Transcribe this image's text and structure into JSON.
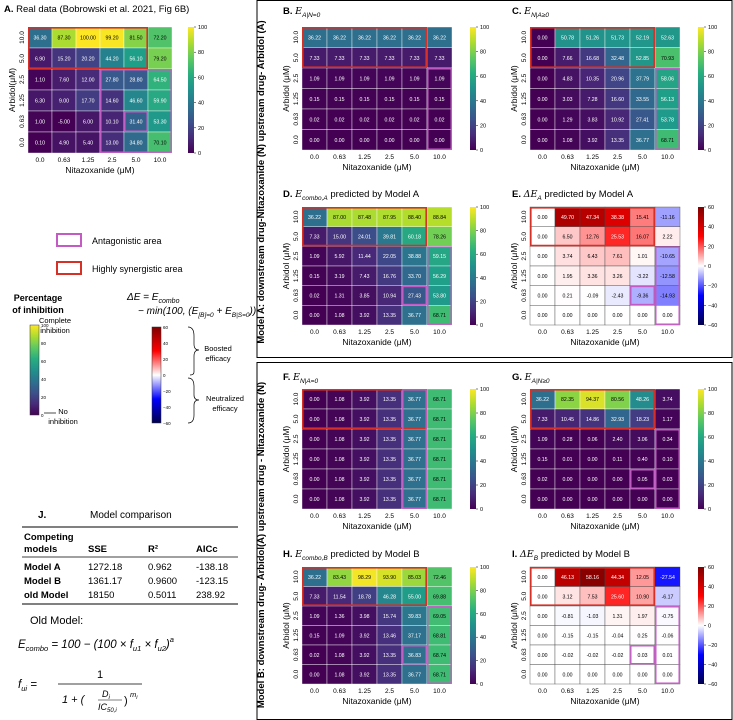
{
  "colors": {
    "synergy": "#d73027",
    "antagonism": "#c45ac4"
  },
  "chart_data": [
    {
      "id": "A",
      "type": "heatmap",
      "label": "A.",
      "title": "Real data (Bobrowski et al. 2021, Fig 6B)",
      "xlabel": "Nitazoxanide (μM)",
      "ylabel": "Arbidol(μM)",
      "xticks": [
        "0.0",
        "0.63",
        "1.25",
        "2.5",
        "5.0",
        "10.0"
      ],
      "yticks": [
        "10.0",
        "5.0",
        "2.5",
        "1.25",
        "0.63",
        "0.0"
      ],
      "cbar_ticks": [
        "0",
        "20",
        "40",
        "60",
        "80",
        "100"
      ],
      "vmin": 0,
      "vmax": 100,
      "cmap": "viridis",
      "values": [
        [
          "36.30",
          "87.30",
          "100.00",
          "99.20",
          "81.50",
          "72.20"
        ],
        [
          "6.90",
          "15.20",
          "20.20",
          "44.20",
          "56.10",
          "79.20"
        ],
        [
          "1.10",
          "7.60",
          "12.00",
          "27.80",
          "28.80",
          "64.50"
        ],
        [
          "6.30",
          "9.00",
          "17.70",
          "14.60",
          "46.60",
          "59.90"
        ],
        [
          "1.00",
          "-5.00",
          "6.00",
          "10.10",
          "31.40",
          "53.30"
        ],
        [
          "0.10",
          "4.90",
          "5.40",
          "13.00",
          "34.80",
          "70.10"
        ]
      ],
      "red_boxes": [
        [
          0,
          1,
          0,
          4
        ]
      ],
      "pink_boxes": [
        [
          2,
          5,
          3,
          5
        ],
        [
          4,
          4,
          4,
          4
        ]
      ]
    },
    {
      "id": "B",
      "type": "heatmap",
      "label": "B.",
      "title": "E",
      "title_sub": "A|N=0",
      "xlabel": "Nitazoxanide (μM)",
      "ylabel": "Arbidol (μM)",
      "xticks": [
        "0.0",
        "0.63",
        "1.25",
        "2.5",
        "5.0",
        "10.0"
      ],
      "yticks": [
        "10.0",
        "5.0",
        "2.5",
        "1.25",
        "0.63",
        "0.0"
      ],
      "cbar_ticks": [
        "0",
        "20",
        "40",
        "60",
        "80",
        "100"
      ],
      "vmin": 0,
      "vmax": 100,
      "cmap": "viridis",
      "values": [
        [
          "36.22",
          "36.22",
          "36.22",
          "36.22",
          "36.22",
          "36.22"
        ],
        [
          "7.33",
          "7.33",
          "7.33",
          "7.33",
          "7.33",
          "7.33"
        ],
        [
          "1.09",
          "1.09",
          "1.09",
          "1.09",
          "1.09",
          "1.09"
        ],
        [
          "0.15",
          "0.15",
          "0.15",
          "0.15",
          "0.15",
          "0.15"
        ],
        [
          "0.02",
          "0.02",
          "0.02",
          "0.02",
          "0.02",
          "0.02"
        ],
        [
          "0.00",
          "0.00",
          "0.00",
          "0.00",
          "0.00",
          "0.00"
        ]
      ],
      "red_boxes": [
        [
          0,
          1,
          0,
          4
        ]
      ],
      "pink_boxes": [
        [
          2,
          5,
          5,
          5
        ]
      ]
    },
    {
      "id": "C",
      "type": "heatmap",
      "label": "C.",
      "title": "E",
      "title_sub": "N|A≥0",
      "xlabel": "Nitazoxanide (μM)",
      "ylabel": "Arbidol (μM)",
      "xticks": [
        "0.0",
        "0.63",
        "1.25",
        "2.5",
        "5.0",
        "10.0"
      ],
      "yticks": [
        "10.0",
        "5.0",
        "2.5",
        "1.25",
        "0.63",
        "0.0"
      ],
      "cbar_ticks": [
        "0",
        "20",
        "40",
        "60",
        "80",
        "100"
      ],
      "vmin": 0,
      "vmax": 100,
      "cmap": "viridis",
      "values": [
        [
          "0.00",
          "50.78",
          "51.26",
          "51.73",
          "52.19",
          "52.63"
        ],
        [
          "0.00",
          "7.66",
          "16.68",
          "32.48",
          "52.85",
          "70.93"
        ],
        [
          "0.00",
          "4.83",
          "10.35",
          "20.96",
          "37.79",
          "58.06"
        ],
        [
          "0.00",
          "3.03",
          "7.28",
          "16.60",
          "33.55",
          "56.13"
        ],
        [
          "0.00",
          "1.29",
          "3.83",
          "10.92",
          "27.41",
          "53.78"
        ],
        [
          "0.00",
          "1.08",
          "3.92",
          "13.35",
          "36.77",
          "68.71"
        ]
      ],
      "red_boxes": [
        [
          0,
          1,
          0,
          4
        ]
      ],
      "pink_boxes": [
        [
          2,
          5,
          5,
          5
        ]
      ]
    },
    {
      "id": "D",
      "type": "heatmap",
      "label": "D.",
      "title": "E",
      "title_sub": "combo,A",
      "title_suffix": " predicted by Model A",
      "xlabel": "Nitazoxanide (μM)",
      "ylabel": "Arbidol (μM)",
      "xticks": [
        "0.0",
        "0.63",
        "1.25",
        "2.5",
        "5.0",
        "10.0"
      ],
      "yticks": [
        "10.0",
        "5.0",
        "2.5",
        "1.25",
        "0.63",
        "0.0"
      ],
      "cbar_ticks": [
        "0",
        "20",
        "40",
        "60",
        "80",
        "100"
      ],
      "vmin": 0,
      "vmax": 100,
      "cmap": "viridis",
      "values": [
        [
          "36.22",
          "87.00",
          "87.48",
          "87.95",
          "88.40",
          "88.84"
        ],
        [
          "7.33",
          "15.00",
          "24.01",
          "39.81",
          "60.18",
          "78.26"
        ],
        [
          "1.09",
          "5.92",
          "11.44",
          "22.05",
          "38.88",
          "59.15"
        ],
        [
          "0.15",
          "3.19",
          "7.43",
          "16.76",
          "33.70",
          "56.29"
        ],
        [
          "0.02",
          "1.31",
          "3.85",
          "10.94",
          "27.43",
          "53.80"
        ],
        [
          "0.00",
          "1.08",
          "3.92",
          "13.35",
          "36.77",
          "68.71"
        ]
      ],
      "red_boxes": [
        [
          0,
          1,
          0,
          4
        ]
      ],
      "pink_boxes": [
        [
          2,
          5,
          5,
          5
        ],
        [
          4,
          4,
          4,
          4
        ]
      ]
    },
    {
      "id": "E",
      "type": "heatmap",
      "label": "E.",
      "title": "ΔE",
      "title_sub": "A",
      "title_suffix": " predicted by Model A",
      "xlabel": "Nitazoxanide (μM)",
      "ylabel": "Arbidol (μM)",
      "xticks": [
        "0.0",
        "0.63",
        "1.25",
        "2.5",
        "5.0",
        "10.0"
      ],
      "yticks": [
        "10.0",
        "5.0",
        "2.5",
        "1.25",
        "0.63",
        "0.0"
      ],
      "cbar_ticks": [
        "60",
        "40",
        "20",
        "0",
        "−20",
        "−40",
        "−60"
      ],
      "vmin": -60,
      "vmax": 60,
      "cmap": "seismic",
      "values": [
        [
          "0.00",
          "49.70",
          "47.34",
          "38.38",
          "15.41",
          "-11.16"
        ],
        [
          "0.00",
          "6.50",
          "12.76",
          "25.53",
          "16.07",
          "2.22"
        ],
        [
          "0.00",
          "3.74",
          "6.43",
          "7.61",
          "1.01",
          "-10.65"
        ],
        [
          "0.00",
          "1.95",
          "3.36",
          "3.26",
          "-3.22",
          "-12.58"
        ],
        [
          "0.00",
          "0.21",
          "-0.09",
          "-2.43",
          "-9.36",
          "-14.93"
        ],
        [
          "0.00",
          "0.00",
          "0.00",
          "0.00",
          "0.00",
          "0.00"
        ]
      ],
      "red_boxes": [
        [
          0,
          1,
          0,
          4
        ]
      ],
      "pink_boxes": [
        [
          2,
          5,
          5,
          5
        ],
        [
          4,
          4,
          4,
          4
        ]
      ]
    },
    {
      "id": "F",
      "type": "heatmap",
      "label": "F.",
      "title": "E",
      "title_sub": "N|A=0",
      "xlabel": "Nitazoxanide (μM)",
      "ylabel": "Arbidol (μM)",
      "xticks": [
        "0.0",
        "0.63",
        "1.25",
        "2.5",
        "5.0",
        "10.0"
      ],
      "yticks": [
        "10.0",
        "5.0",
        "2.5",
        "1.25",
        "0.63",
        "0.0"
      ],
      "cbar_ticks": [
        "0",
        "20",
        "40",
        "60",
        "80",
        "100"
      ],
      "vmin": 0,
      "vmax": 100,
      "cmap": "viridis",
      "values": [
        [
          "0.00",
          "1.08",
          "3.92",
          "13.35",
          "36.77",
          "68.71"
        ],
        [
          "0.00",
          "1.08",
          "3.92",
          "13.35",
          "36.77",
          "68.71"
        ],
        [
          "0.00",
          "1.08",
          "3.92",
          "13.35",
          "36.77",
          "68.71"
        ],
        [
          "0.00",
          "1.08",
          "3.92",
          "13.35",
          "36.77",
          "68.71"
        ],
        [
          "0.00",
          "1.08",
          "3.92",
          "13.35",
          "36.77",
          "68.71"
        ],
        [
          "0.00",
          "1.08",
          "3.92",
          "13.35",
          "36.77",
          "68.71"
        ]
      ],
      "red_boxes": [
        [
          0,
          1,
          0,
          4
        ]
      ],
      "pink_boxes": [
        [
          0,
          5,
          4,
          4
        ]
      ]
    },
    {
      "id": "G",
      "type": "heatmap",
      "label": "G.",
      "title": "E",
      "title_sub": "A|N≥0",
      "xlabel": "Nitazoxanide (μM)",
      "ylabel": "Arbidol (μM)",
      "xticks": [
        "0.0",
        "0.63",
        "1.25",
        "2.5",
        "5.0",
        "10.0"
      ],
      "yticks": [
        "10.0",
        "5.0",
        "2.5",
        "1.25",
        "0.63",
        "0.0"
      ],
      "cbar_ticks": [
        "0",
        "20",
        "40",
        "60",
        "80",
        "100"
      ],
      "vmin": 0,
      "vmax": 100,
      "cmap": "viridis",
      "values": [
        [
          "36.22",
          "82.35",
          "94.37",
          "80.56",
          "48.26",
          "3.74"
        ],
        [
          "7.33",
          "10.45",
          "14.86",
          "32.93",
          "18.23",
          "1.17"
        ],
        [
          "1.09",
          "0.28",
          "0.06",
          "2.40",
          "3.06",
          "0.34"
        ],
        [
          "0.15",
          "0.01",
          "0.00",
          "0.11",
          "0.40",
          "0.10"
        ],
        [
          "0.02",
          "0.00",
          "0.00",
          "0.00",
          "0.05",
          "0.03"
        ],
        [
          "0.00",
          "0.00",
          "0.00",
          "0.00",
          "0.00",
          "0.00"
        ]
      ],
      "red_boxes": [
        [
          0,
          1,
          0,
          4
        ]
      ],
      "pink_boxes": [
        [
          2,
          5,
          5,
          5
        ],
        [
          4,
          4,
          4,
          4
        ]
      ]
    },
    {
      "id": "H",
      "type": "heatmap",
      "label": "H.",
      "title": "E",
      "title_sub": "combo,B",
      "title_suffix": " predicted by Model B",
      "xlabel": "Nitazoxanide (μM)",
      "ylabel": "Arbidol (μM)",
      "xticks": [
        "0.0",
        "0.63",
        "1.25",
        "2.5",
        "5.0",
        "10.0"
      ],
      "yticks": [
        "10.0",
        "5.0",
        "2.5",
        "1.25",
        "0.63",
        "0.0"
      ],
      "cbar_ticks": [
        "0",
        "20",
        "40",
        "60",
        "80",
        "100"
      ],
      "vmin": 0,
      "vmax": 100,
      "cmap": "viridis",
      "values": [
        [
          "36.22",
          "83.43",
          "98.29",
          "93.90",
          "85.03",
          "72.46"
        ],
        [
          "7.33",
          "11.54",
          "18.78",
          "46.28",
          "55.00",
          "69.88"
        ],
        [
          "1.09",
          "1.36",
          "3.98",
          "15.74",
          "39.83",
          "69.05"
        ],
        [
          "0.15",
          "1.09",
          "3.92",
          "13.46",
          "37.17",
          "68.81"
        ],
        [
          "0.02",
          "1.08",
          "3.92",
          "13.35",
          "36.83",
          "68.74"
        ],
        [
          "0.00",
          "1.08",
          "3.92",
          "13.35",
          "36.77",
          "68.71"
        ]
      ],
      "red_boxes": [
        [
          0,
          1,
          0,
          4
        ]
      ],
      "pink_boxes": [
        [
          2,
          5,
          5,
          5
        ],
        [
          4,
          4,
          4,
          4
        ]
      ]
    },
    {
      "id": "I",
      "type": "heatmap",
      "label": "I.",
      "title": "ΔE",
      "title_sub": "B",
      "title_suffix": " predicted by Model B",
      "xlabel": "Nitazoxanide (μM)",
      "ylabel": "Arbidol (μM)",
      "xticks": [
        "0.0",
        "0.63",
        "1.25",
        "2.5",
        "5.0",
        "10.0"
      ],
      "yticks": [
        "10.0",
        "5.0",
        "2.5",
        "1.25",
        "0.63",
        "0.0"
      ],
      "cbar_ticks": [
        "60",
        "40",
        "20",
        "0",
        "−20",
        "−40",
        "−60"
      ],
      "vmin": -60,
      "vmax": 60,
      "cmap": "seismic",
      "values": [
        [
          "0.00",
          "46.13",
          "58.16",
          "44.34",
          "12.05",
          "-27.54"
        ],
        [
          "0.00",
          "3.12",
          "7.53",
          "25.60",
          "10.90",
          "-6.17"
        ],
        [
          "0.00",
          "-0.81",
          "-1.03",
          "1.31",
          "1.97",
          "-0.75"
        ],
        [
          "0.00",
          "-0.15",
          "-0.15",
          "-0.04",
          "0.25",
          "-0.06"
        ],
        [
          "0.00",
          "-0.02",
          "-0.02",
          "-0.02",
          "0.03",
          "0.01"
        ],
        [
          "0.00",
          "0.00",
          "0.00",
          "0.00",
          "0.00",
          "0.00"
        ]
      ],
      "red_boxes": [
        [
          0,
          1,
          0,
          4
        ]
      ],
      "pink_boxes": [
        [
          2,
          5,
          5,
          5
        ],
        [
          4,
          4,
          4,
          4
        ]
      ]
    }
  ],
  "legend": {
    "antagonistic": "Antagonistic area",
    "synergistic": "Highly synergistic area"
  },
  "inhibition_bar": {
    "title_line1": "Percentage",
    "title_line2": "of inhibition",
    "top": "Complete",
    "top2": "inhibition",
    "bottom": "No",
    "bottom2": "inhibition"
  },
  "delta_legend": {
    "formula_line1": "ΔE = E",
    "formula_line1_sub": "combo",
    "formula_line2": "− min(100, (E",
    "formula_line2_sub1": "[B]=0",
    "formula_line2_mid": " + E",
    "formula_line2_sub2": "B|S=0",
    "formula_line2_end": "))",
    "boosted1": "Boosted",
    "boosted2": "efficacy",
    "neutral1": "Neutralized",
    "neutral2": "efficacy"
  },
  "side_labels": {
    "model_a": "Model A: downstream drug-Nitazoxanide (N) upstream drug- Arbidol (A)",
    "model_b": "Model B: downstream drug- Arbidol(A) upstream drug - Nitazoxanide (N)"
  },
  "comparison": {
    "label": "J.",
    "title": "Model comparison",
    "headers": [
      "Competing models",
      "SSE",
      "R²",
      "AICc"
    ],
    "header_line1": "Competing",
    "header_line2": "models",
    "rows": [
      [
        "Model A",
        "1272.18",
        "0.962",
        "-138.18"
      ],
      [
        "Model B",
        "1361.17",
        "0.9600",
        "-123.15"
      ],
      [
        "old Model",
        "18150",
        "0.5011",
        "238.92"
      ]
    ]
  },
  "old_model": {
    "title": "Old Model:",
    "eq1": "E",
    "eq1_sub": "combo",
    "eq1_rest": " = 100 − (100 × f",
    "eq1_u1": "u1",
    "eq1_times": " × f",
    "eq1_u2": "u2",
    "eq1_end": ")",
    "eq1_exp": "a",
    "eq2_lhs": "f",
    "eq2_lhs_sub": "ui",
    "eq2_num": "1",
    "eq2_den1": "1 + (",
    "eq2_D": "D",
    "eq2_D_sub": "i",
    "eq2_IC": "IC",
    "eq2_IC_sub": "50,i",
    "eq2_exp": "m",
    "eq2_exp_sub": "i"
  }
}
